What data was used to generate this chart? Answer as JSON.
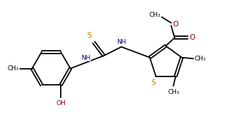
{
  "bg_color": "#ffffff",
  "line_color": "#000000",
  "s_color": "#b8860b",
  "n_color": "#000080",
  "o_color": "#8b0000",
  "figsize": [
    3.41,
    1.87
  ],
  "dpi": 100,
  "xlim": [
    0,
    10
  ],
  "ylim": [
    0,
    5.5
  ]
}
